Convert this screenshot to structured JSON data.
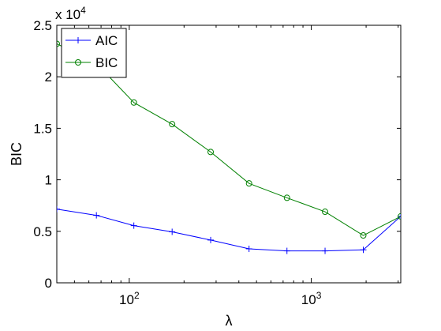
{
  "chart_data": {
    "type": "line",
    "xlabel": "λ",
    "ylabel": "BIC",
    "x_scale": "log",
    "xlim": [
      40,
      3100
    ],
    "ylim": [
      0,
      25000
    ],
    "y_exponent_label": "x 10",
    "y_exponent_power": "4",
    "x_ticks": [
      {
        "value": 100,
        "base": "10",
        "exp": "2"
      },
      {
        "value": 1000,
        "base": "10",
        "exp": "3"
      }
    ],
    "y_ticks": [
      {
        "value": 0,
        "label": "0"
      },
      {
        "value": 5000,
        "label": "0.5"
      },
      {
        "value": 10000,
        "label": "1"
      },
      {
        "value": 15000,
        "label": "1.5"
      },
      {
        "value": 20000,
        "label": "2"
      },
      {
        "value": 25000,
        "label": "2.5"
      }
    ],
    "grid": false,
    "legend_position": "top-left",
    "series": [
      {
        "name": "AIC",
        "color": "#0000ff",
        "marker": "plus",
        "points": [
          [
            40,
            7150
          ],
          [
            66,
            6550
          ],
          [
            106,
            5550
          ],
          [
            172,
            4950
          ],
          [
            280,
            4150
          ],
          [
            455,
            3300
          ],
          [
            735,
            3100
          ],
          [
            1190,
            3100
          ],
          [
            1930,
            3200
          ],
          [
            3100,
            6450
          ]
        ]
      },
      {
        "name": "BIC",
        "color": "#008000",
        "marker": "circle",
        "points": [
          [
            40,
            23200
          ],
          [
            66,
            21300
          ],
          [
            106,
            17500
          ],
          [
            172,
            15400
          ],
          [
            280,
            12700
          ],
          [
            455,
            9650
          ],
          [
            735,
            8250
          ],
          [
            1190,
            6900
          ],
          [
            1930,
            4600
          ],
          [
            3100,
            6450
          ]
        ]
      }
    ]
  }
}
